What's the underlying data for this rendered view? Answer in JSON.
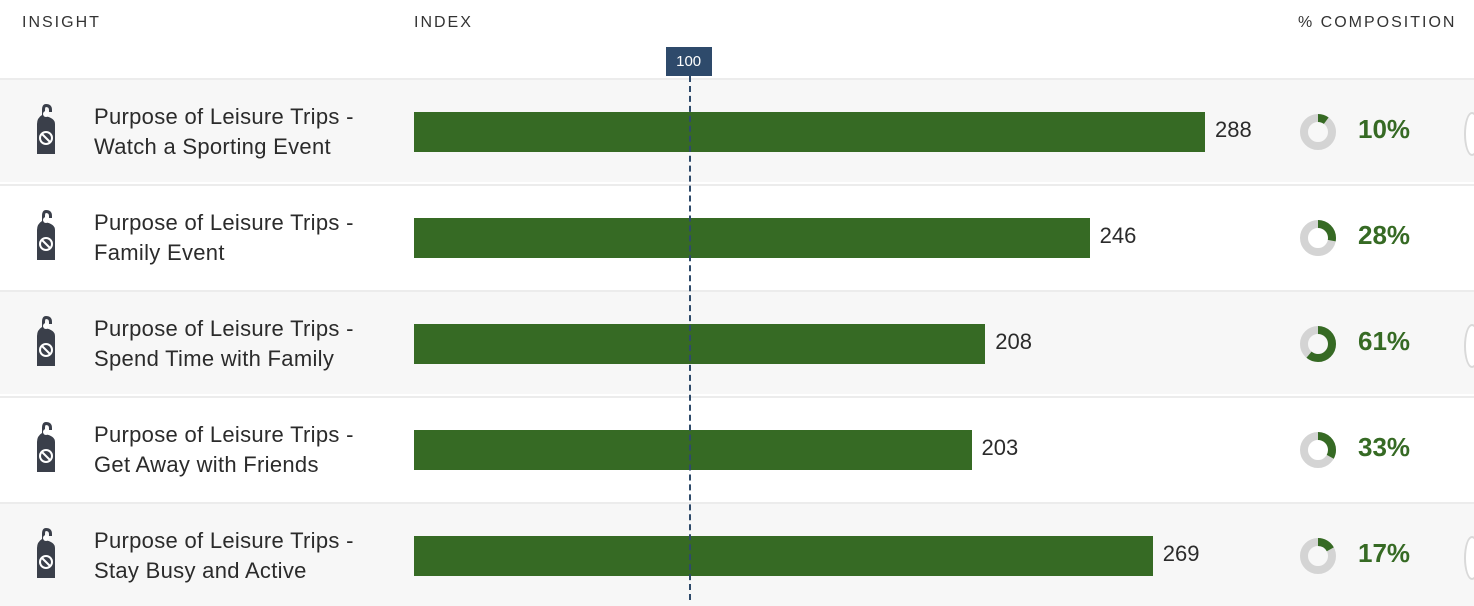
{
  "headers": {
    "insight": "INSIGHT",
    "index": "INDEX",
    "composition": "% COMPOSITION"
  },
  "reference": {
    "label": "100",
    "value": 100
  },
  "colors": {
    "bar": "#366a24",
    "donut_fill": "#366a24",
    "donut_track": "#d4d4d4",
    "reference": "#2e4a6b",
    "icon": "#3a3f4a"
  },
  "chart_data": {
    "type": "bar",
    "orientation": "horizontal",
    "reference_line": 100,
    "categories": [
      "Purpose of Leisure Trips - Watch a Sporting Event",
      "Purpose of Leisure Trips - Family Event",
      "Purpose of Leisure Trips - Spend Time with Family",
      "Purpose of Leisure Trips - Get Away with Friends",
      "Purpose of Leisure Trips - Stay Busy and Active"
    ],
    "series": [
      {
        "values": [
          288,
          246,
          208,
          203,
          269
        ]
      },
      {
        "values": [
          10,
          28,
          61,
          33,
          17
        ]
      }
    ]
  },
  "rows": [
    {
      "line1": "Purpose of Leisure Trips -",
      "line2": "Watch a Sporting Event",
      "index": "288",
      "index_value": 288,
      "composition": "10%",
      "composition_value": 10,
      "icon": "door-hanger-icon"
    },
    {
      "line1": "Purpose of Leisure Trips -",
      "line2": "Family Event",
      "index": "246",
      "index_value": 246,
      "composition": "28%",
      "composition_value": 28,
      "icon": "door-hanger-icon"
    },
    {
      "line1": "Purpose of Leisure Trips -",
      "line2": "Spend Time with Family",
      "index": "208",
      "index_value": 208,
      "composition": "61%",
      "composition_value": 61,
      "icon": "door-hanger-icon"
    },
    {
      "line1": "Purpose of Leisure Trips -",
      "line2": "Get Away with Friends",
      "index": "203",
      "index_value": 203,
      "composition": "33%",
      "composition_value": 33,
      "icon": "door-hanger-icon"
    },
    {
      "line1": "Purpose of Leisure Trips -",
      "line2": "Stay Busy and Active",
      "index": "269",
      "index_value": 269,
      "composition": "17%",
      "composition_value": 17,
      "icon": "door-hanger-icon"
    }
  ]
}
